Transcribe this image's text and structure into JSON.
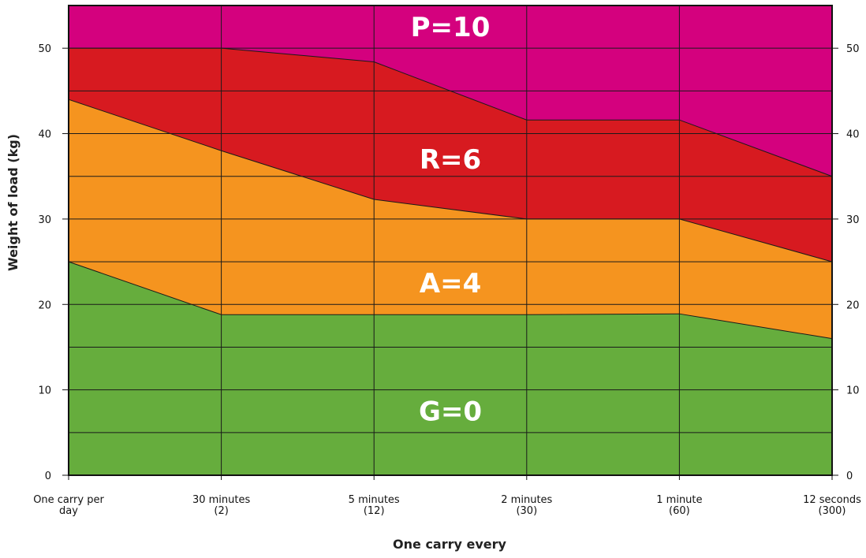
{
  "chart_data": {
    "type": "area",
    "title": "",
    "xlabel": "One carry every",
    "ylabel": "Weight of load (kg)",
    "ylim": [
      0,
      55
    ],
    "yticks": [
      0,
      10,
      20,
      30,
      40,
      50
    ],
    "grid": true,
    "categories": [
      [
        "One carry per",
        "day"
      ],
      [
        "30 minutes",
        "(2)"
      ],
      [
        "5 minutes",
        "(12)"
      ],
      [
        "2 minutes",
        "(30)"
      ],
      [
        "1 minute",
        "(60)"
      ],
      [
        "12 seconds",
        "(300)"
      ]
    ],
    "series": [
      {
        "name": "G=0",
        "upper": [
          25,
          18.8,
          18.8,
          18.8,
          18.9,
          16
        ],
        "color": "#66ad3d"
      },
      {
        "name": "A=4",
        "upper": [
          44,
          38,
          32.3,
          30,
          30,
          25
        ],
        "color": "#f5941f"
      },
      {
        "name": "R=6",
        "upper": [
          50,
          50,
          48.4,
          41.6,
          41.6,
          35
        ],
        "color": "#d71a20"
      },
      {
        "name": "P=10",
        "upper": [
          55,
          55,
          55,
          55,
          55,
          55
        ],
        "color": "#d4017e"
      }
    ],
    "band_labels": [
      {
        "text": "G=0",
        "y": 7.5
      },
      {
        "text": "A=4",
        "y": 22.5
      },
      {
        "text": "R=6",
        "y": 37
      },
      {
        "text": "P=10",
        "y": 52.5
      }
    ]
  }
}
